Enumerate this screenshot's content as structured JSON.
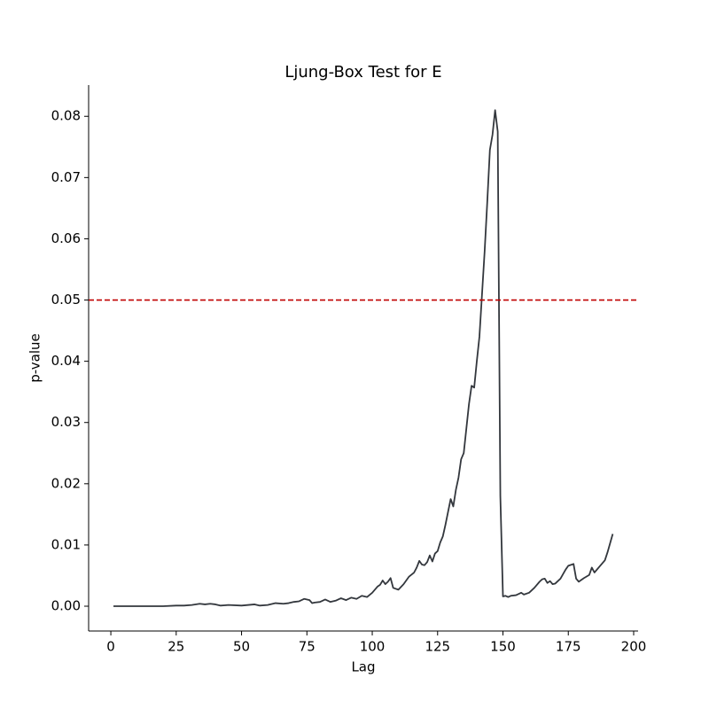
{
  "chart_data": {
    "type": "line",
    "title": "Ljung-Box Test for E",
    "x_label": "Lag",
    "y_label": "p-value",
    "x": [
      1,
      5,
      10,
      15,
      20,
      25,
      28,
      31,
      34,
      36,
      38,
      40,
      42,
      45,
      50,
      55,
      57,
      60,
      63,
      66,
      68,
      70,
      72,
      74,
      76,
      77,
      78,
      80,
      82,
      84,
      86,
      88,
      90,
      92,
      94,
      96,
      98,
      100,
      102,
      103,
      104,
      105,
      106,
      107,
      108,
      110,
      112,
      114,
      116,
      117,
      118,
      119,
      120,
      121,
      122,
      123,
      124,
      125,
      126,
      127,
      128,
      129,
      130,
      131,
      132,
      133,
      134,
      135,
      136,
      137,
      138,
      139,
      140,
      141,
      142,
      143,
      144,
      145,
      146,
      147,
      148,
      149,
      150,
      151,
      152,
      153,
      155,
      157,
      158,
      160,
      162,
      164,
      165,
      166,
      167,
      168,
      169,
      170,
      172,
      174,
      175,
      177,
      178,
      179,
      181,
      183,
      184,
      185,
      187,
      189,
      190,
      191,
      192
    ],
    "series": [
      {
        "color": "#33373d",
        "values": [
          0,
          0,
          0,
          0,
          0,
          0.0001,
          0.0001,
          0.0002,
          0.0004,
          0.0003,
          0.0004,
          0.0003,
          0.0001,
          0.0002,
          0.0001,
          0.0003,
          0.0001,
          0.0002,
          0.0005,
          0.0004,
          0.0005,
          0.0007,
          0.0008,
          0.0012,
          0.001,
          0.0005,
          0.0006,
          0.0007,
          0.0011,
          0.0007,
          0.0009,
          0.0013,
          0.001,
          0.0014,
          0.0012,
          0.0017,
          0.0015,
          0.0022,
          0.0032,
          0.0035,
          0.0042,
          0.0036,
          0.004,
          0.0046,
          0.003,
          0.0027,
          0.0036,
          0.0048,
          0.0055,
          0.0063,
          0.0074,
          0.0068,
          0.0067,
          0.0072,
          0.0083,
          0.0073,
          0.0086,
          0.009,
          0.0104,
          0.0114,
          0.0133,
          0.0154,
          0.0175,
          0.0163,
          0.019,
          0.021,
          0.024,
          0.025,
          0.029,
          0.033,
          0.036,
          0.0357,
          0.04,
          0.044,
          0.051,
          0.058,
          0.066,
          0.0745,
          0.077,
          0.081,
          0.0775,
          0.018,
          0.0016,
          0.0017,
          0.0015,
          0.0017,
          0.0018,
          0.0022,
          0.0019,
          0.0022,
          0.003,
          0.004,
          0.0044,
          0.0045,
          0.0038,
          0.0041,
          0.0036,
          0.0037,
          0.0045,
          0.006,
          0.0066,
          0.0069,
          0.0045,
          0.004,
          0.0046,
          0.0051,
          0.0063,
          0.0055,
          0.0065,
          0.0075,
          0.0088,
          0.0103,
          0.0118
        ]
      }
    ],
    "threshold": {
      "value": 0.05,
      "color": "#c00000"
    },
    "xlim": [
      -8.5,
      201.7
    ],
    "xticks": [
      0,
      25,
      50,
      75,
      100,
      125,
      150,
      175,
      200
    ],
    "ylim": [
      -0.00405,
      0.0851
    ],
    "yticks": [
      {
        "value": 0,
        "label": "0.00"
      },
      0.01,
      0.02,
      0.03,
      0.04,
      0.05,
      0.06,
      0.07,
      0.08
    ]
  }
}
